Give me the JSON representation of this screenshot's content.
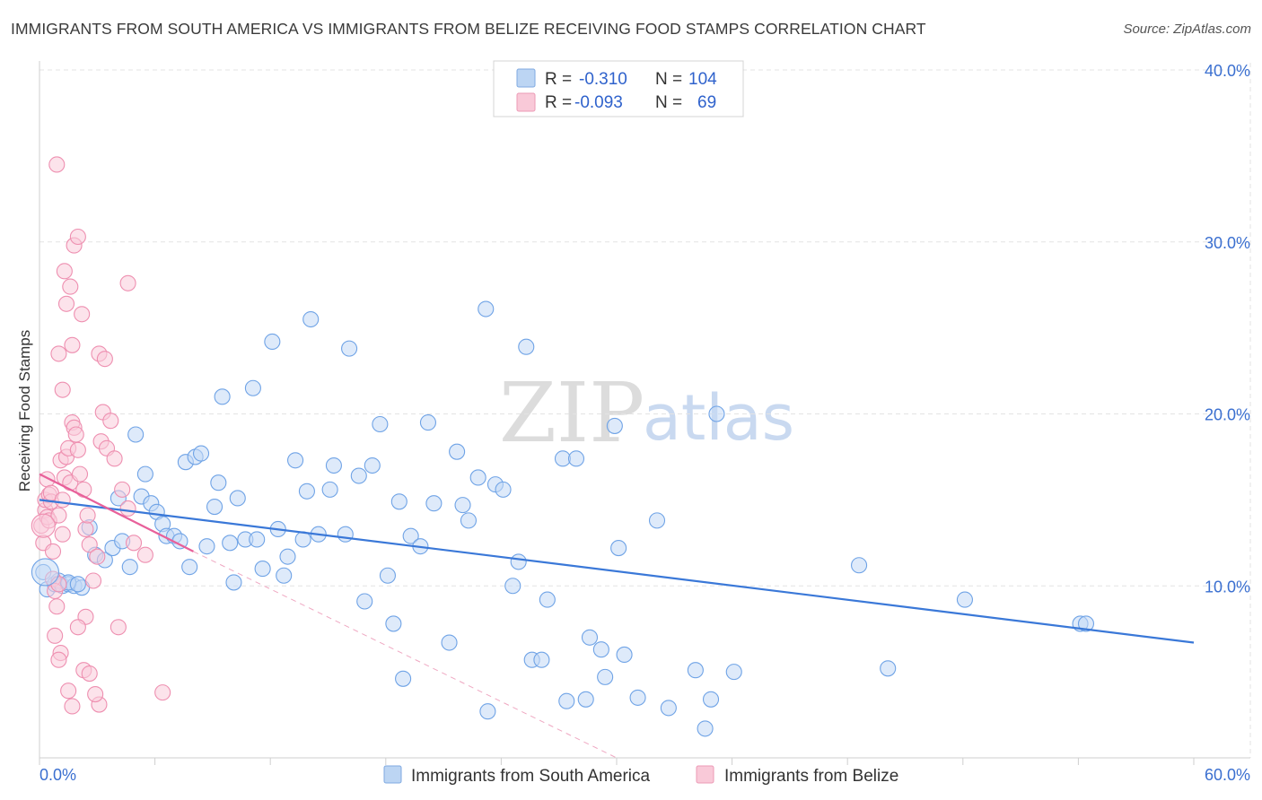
{
  "header": {
    "title": "IMMIGRANTS FROM SOUTH AMERICA VS IMMIGRANTS FROM BELIZE RECEIVING FOOD STAMPS CORRELATION CHART",
    "source": "Source: ZipAtlas.com"
  },
  "watermark": {
    "part1": "ZIP",
    "part2": "atlas"
  },
  "legend": {
    "rows": [
      {
        "r_label": "R =",
        "r_value": "-0.310",
        "n_label": "N =",
        "n_value": "104",
        "color": "#9dc3f0"
      },
      {
        "r_label": "R =",
        "r_value": "-0.093",
        "n_label": "N =",
        "n_value": "69",
        "color": "#f7b3c8"
      }
    ]
  },
  "bottom_legend": {
    "items": [
      {
        "label": "Immigrants from South America",
        "color": "#9dc3f0"
      },
      {
        "label": "Immigrants from Belize",
        "color": "#f7b3c8"
      }
    ]
  },
  "chart_data": {
    "type": "scatter",
    "title": "IMMIGRANTS FROM SOUTH AMERICA VS IMMIGRANTS FROM BELIZE RECEIVING FOOD STAMPS CORRELATION CHART",
    "xlabel": "",
    "ylabel": "Receiving Food Stamps",
    "xlim": [
      0,
      60
    ],
    "ylim": [
      0,
      40
    ],
    "x_tick_labels": [
      "0.0%",
      "60.0%"
    ],
    "y_ticks": [
      10,
      20,
      30,
      40
    ],
    "y_tick_labels": [
      "10.0%",
      "20.0%",
      "30.0%",
      "40.0%"
    ],
    "grid": true,
    "series": [
      {
        "name": "Immigrants from South America",
        "color": "#6fa3e6",
        "fill": "#c2d9f5",
        "R": -0.31,
        "N": 104,
        "trend": {
          "x": [
            0,
            60
          ],
          "y": [
            15.0,
            6.7
          ],
          "color": "#3a78d8"
        },
        "points": [
          [
            0.2,
            10.8
          ],
          [
            0.4,
            9.8
          ],
          [
            0.8,
            10.1
          ],
          [
            1.0,
            10.3
          ],
          [
            1.2,
            10.0
          ],
          [
            1.5,
            10.1
          ],
          [
            1.8,
            10.0
          ],
          [
            2.2,
            9.9
          ],
          [
            1.5,
            10.2
          ],
          [
            2.0,
            10.1
          ],
          [
            2.6,
            13.4
          ],
          [
            2.9,
            11.8
          ],
          [
            3.4,
            11.5
          ],
          [
            3.8,
            12.2
          ],
          [
            4.1,
            15.1
          ],
          [
            4.3,
            12.6
          ],
          [
            4.7,
            11.1
          ],
          [
            5.0,
            18.8
          ],
          [
            5.3,
            15.2
          ],
          [
            5.5,
            16.5
          ],
          [
            5.8,
            14.8
          ],
          [
            6.1,
            14.3
          ],
          [
            6.4,
            13.6
          ],
          [
            6.6,
            12.9
          ],
          [
            7.0,
            12.9
          ],
          [
            7.3,
            12.6
          ],
          [
            7.6,
            17.2
          ],
          [
            7.8,
            11.1
          ],
          [
            8.1,
            17.5
          ],
          [
            8.4,
            17.7
          ],
          [
            8.7,
            12.3
          ],
          [
            9.1,
            14.6
          ],
          [
            9.3,
            16.0
          ],
          [
            9.5,
            21.0
          ],
          [
            9.9,
            12.5
          ],
          [
            10.1,
            10.2
          ],
          [
            10.3,
            15.1
          ],
          [
            10.7,
            12.7
          ],
          [
            11.1,
            21.5
          ],
          [
            11.3,
            12.7
          ],
          [
            11.6,
            11.0
          ],
          [
            12.1,
            24.2
          ],
          [
            12.4,
            13.3
          ],
          [
            12.7,
            10.6
          ],
          [
            12.9,
            11.7
          ],
          [
            13.3,
            17.3
          ],
          [
            13.7,
            12.7
          ],
          [
            13.9,
            15.5
          ],
          [
            14.1,
            25.5
          ],
          [
            14.5,
            13.0
          ],
          [
            15.1,
            15.6
          ],
          [
            15.3,
            17.0
          ],
          [
            15.9,
            13.0
          ],
          [
            16.1,
            23.8
          ],
          [
            16.6,
            16.4
          ],
          [
            16.9,
            9.1
          ],
          [
            17.3,
            17.0
          ],
          [
            17.7,
            19.4
          ],
          [
            18.1,
            10.6
          ],
          [
            18.4,
            7.8
          ],
          [
            18.7,
            14.9
          ],
          [
            18.9,
            4.6
          ],
          [
            19.3,
            12.9
          ],
          [
            19.8,
            12.3
          ],
          [
            20.2,
            19.5
          ],
          [
            20.5,
            14.8
          ],
          [
            21.3,
            6.7
          ],
          [
            21.7,
            17.8
          ],
          [
            22.0,
            14.7
          ],
          [
            22.3,
            13.8
          ],
          [
            22.8,
            16.3
          ],
          [
            23.2,
            26.1
          ],
          [
            23.3,
            2.7
          ],
          [
            23.7,
            15.9
          ],
          [
            24.1,
            15.6
          ],
          [
            24.6,
            10.0
          ],
          [
            24.9,
            11.4
          ],
          [
            25.3,
            23.9
          ],
          [
            25.6,
            5.7
          ],
          [
            26.1,
            5.7
          ],
          [
            26.4,
            9.2
          ],
          [
            27.2,
            17.4
          ],
          [
            27.4,
            3.3
          ],
          [
            27.9,
            17.4
          ],
          [
            28.4,
            3.4
          ],
          [
            28.6,
            7.0
          ],
          [
            29.2,
            6.3
          ],
          [
            29.4,
            4.7
          ],
          [
            29.9,
            19.3
          ],
          [
            30.1,
            12.2
          ],
          [
            30.4,
            6.0
          ],
          [
            31.1,
            3.5
          ],
          [
            32.1,
            13.8
          ],
          [
            32.7,
            2.9
          ],
          [
            34.1,
            5.1
          ],
          [
            34.6,
            1.7
          ],
          [
            34.9,
            3.4
          ],
          [
            35.2,
            20.0
          ],
          [
            36.1,
            5.0
          ],
          [
            42.6,
            11.2
          ],
          [
            44.1,
            5.2
          ],
          [
            48.1,
            9.2
          ],
          [
            54.1,
            7.8
          ],
          [
            54.4,
            7.8
          ]
        ]
      },
      {
        "name": "Immigrants from Belize",
        "color": "#ee8fb0",
        "fill": "#f9ccdb",
        "R": -0.093,
        "N": 69,
        "trend": {
          "x": [
            0,
            8
          ],
          "y": [
            16.5,
            12.0
          ],
          "color": "#e8609a"
        },
        "trend_extended": {
          "x": [
            8,
            30
          ],
          "y": [
            12.0,
            0.0
          ],
          "color": "#efa8c2"
        },
        "points": [
          [
            0.1,
            13.5
          ],
          [
            0.2,
            12.5
          ],
          [
            0.3,
            14.4
          ],
          [
            0.3,
            15.0
          ],
          [
            0.4,
            16.2
          ],
          [
            0.4,
            14.0
          ],
          [
            0.5,
            15.3
          ],
          [
            0.5,
            13.8
          ],
          [
            0.6,
            14.9
          ],
          [
            0.6,
            15.4
          ],
          [
            0.7,
            12.0
          ],
          [
            0.7,
            10.4
          ],
          [
            0.8,
            9.7
          ],
          [
            0.9,
            8.8
          ],
          [
            1.0,
            10.1
          ],
          [
            1.0,
            14.1
          ],
          [
            1.1,
            17.3
          ],
          [
            1.2,
            13.0
          ],
          [
            1.2,
            15.0
          ],
          [
            1.3,
            16.3
          ],
          [
            1.4,
            17.5
          ],
          [
            1.5,
            18.0
          ],
          [
            1.6,
            16.0
          ],
          [
            1.7,
            19.5
          ],
          [
            1.8,
            19.2
          ],
          [
            1.9,
            18.8
          ],
          [
            2.0,
            17.9
          ],
          [
            2.1,
            16.5
          ],
          [
            2.3,
            15.6
          ],
          [
            2.4,
            13.3
          ],
          [
            2.5,
            14.1
          ],
          [
            2.6,
            12.4
          ],
          [
            2.8,
            10.3
          ],
          [
            3.0,
            11.7
          ],
          [
            3.2,
            18.4
          ],
          [
            3.3,
            20.1
          ],
          [
            3.5,
            18.0
          ],
          [
            3.7,
            19.6
          ],
          [
            3.9,
            17.4
          ],
          [
            4.3,
            15.6
          ],
          [
            4.6,
            14.5
          ],
          [
            4.9,
            12.5
          ],
          [
            5.5,
            11.8
          ],
          [
            1.0,
            23.5
          ],
          [
            1.2,
            21.4
          ],
          [
            1.4,
            26.4
          ],
          [
            1.6,
            27.4
          ],
          [
            1.8,
            29.8
          ],
          [
            2.0,
            30.3
          ],
          [
            1.7,
            24.0
          ],
          [
            1.3,
            28.3
          ],
          [
            0.9,
            34.5
          ],
          [
            2.2,
            25.8
          ],
          [
            3.1,
            23.5
          ],
          [
            3.4,
            23.2
          ],
          [
            4.6,
            27.6
          ],
          [
            1.1,
            6.1
          ],
          [
            1.5,
            3.9
          ],
          [
            1.7,
            3.0
          ],
          [
            2.3,
            5.1
          ],
          [
            2.6,
            4.9
          ],
          [
            3.1,
            3.1
          ],
          [
            2.9,
            3.7
          ],
          [
            2.4,
            8.2
          ],
          [
            2.0,
            7.6
          ],
          [
            4.1,
            7.6
          ],
          [
            6.4,
            3.8
          ],
          [
            0.8,
            7.1
          ],
          [
            1.0,
            5.7
          ]
        ]
      }
    ]
  }
}
